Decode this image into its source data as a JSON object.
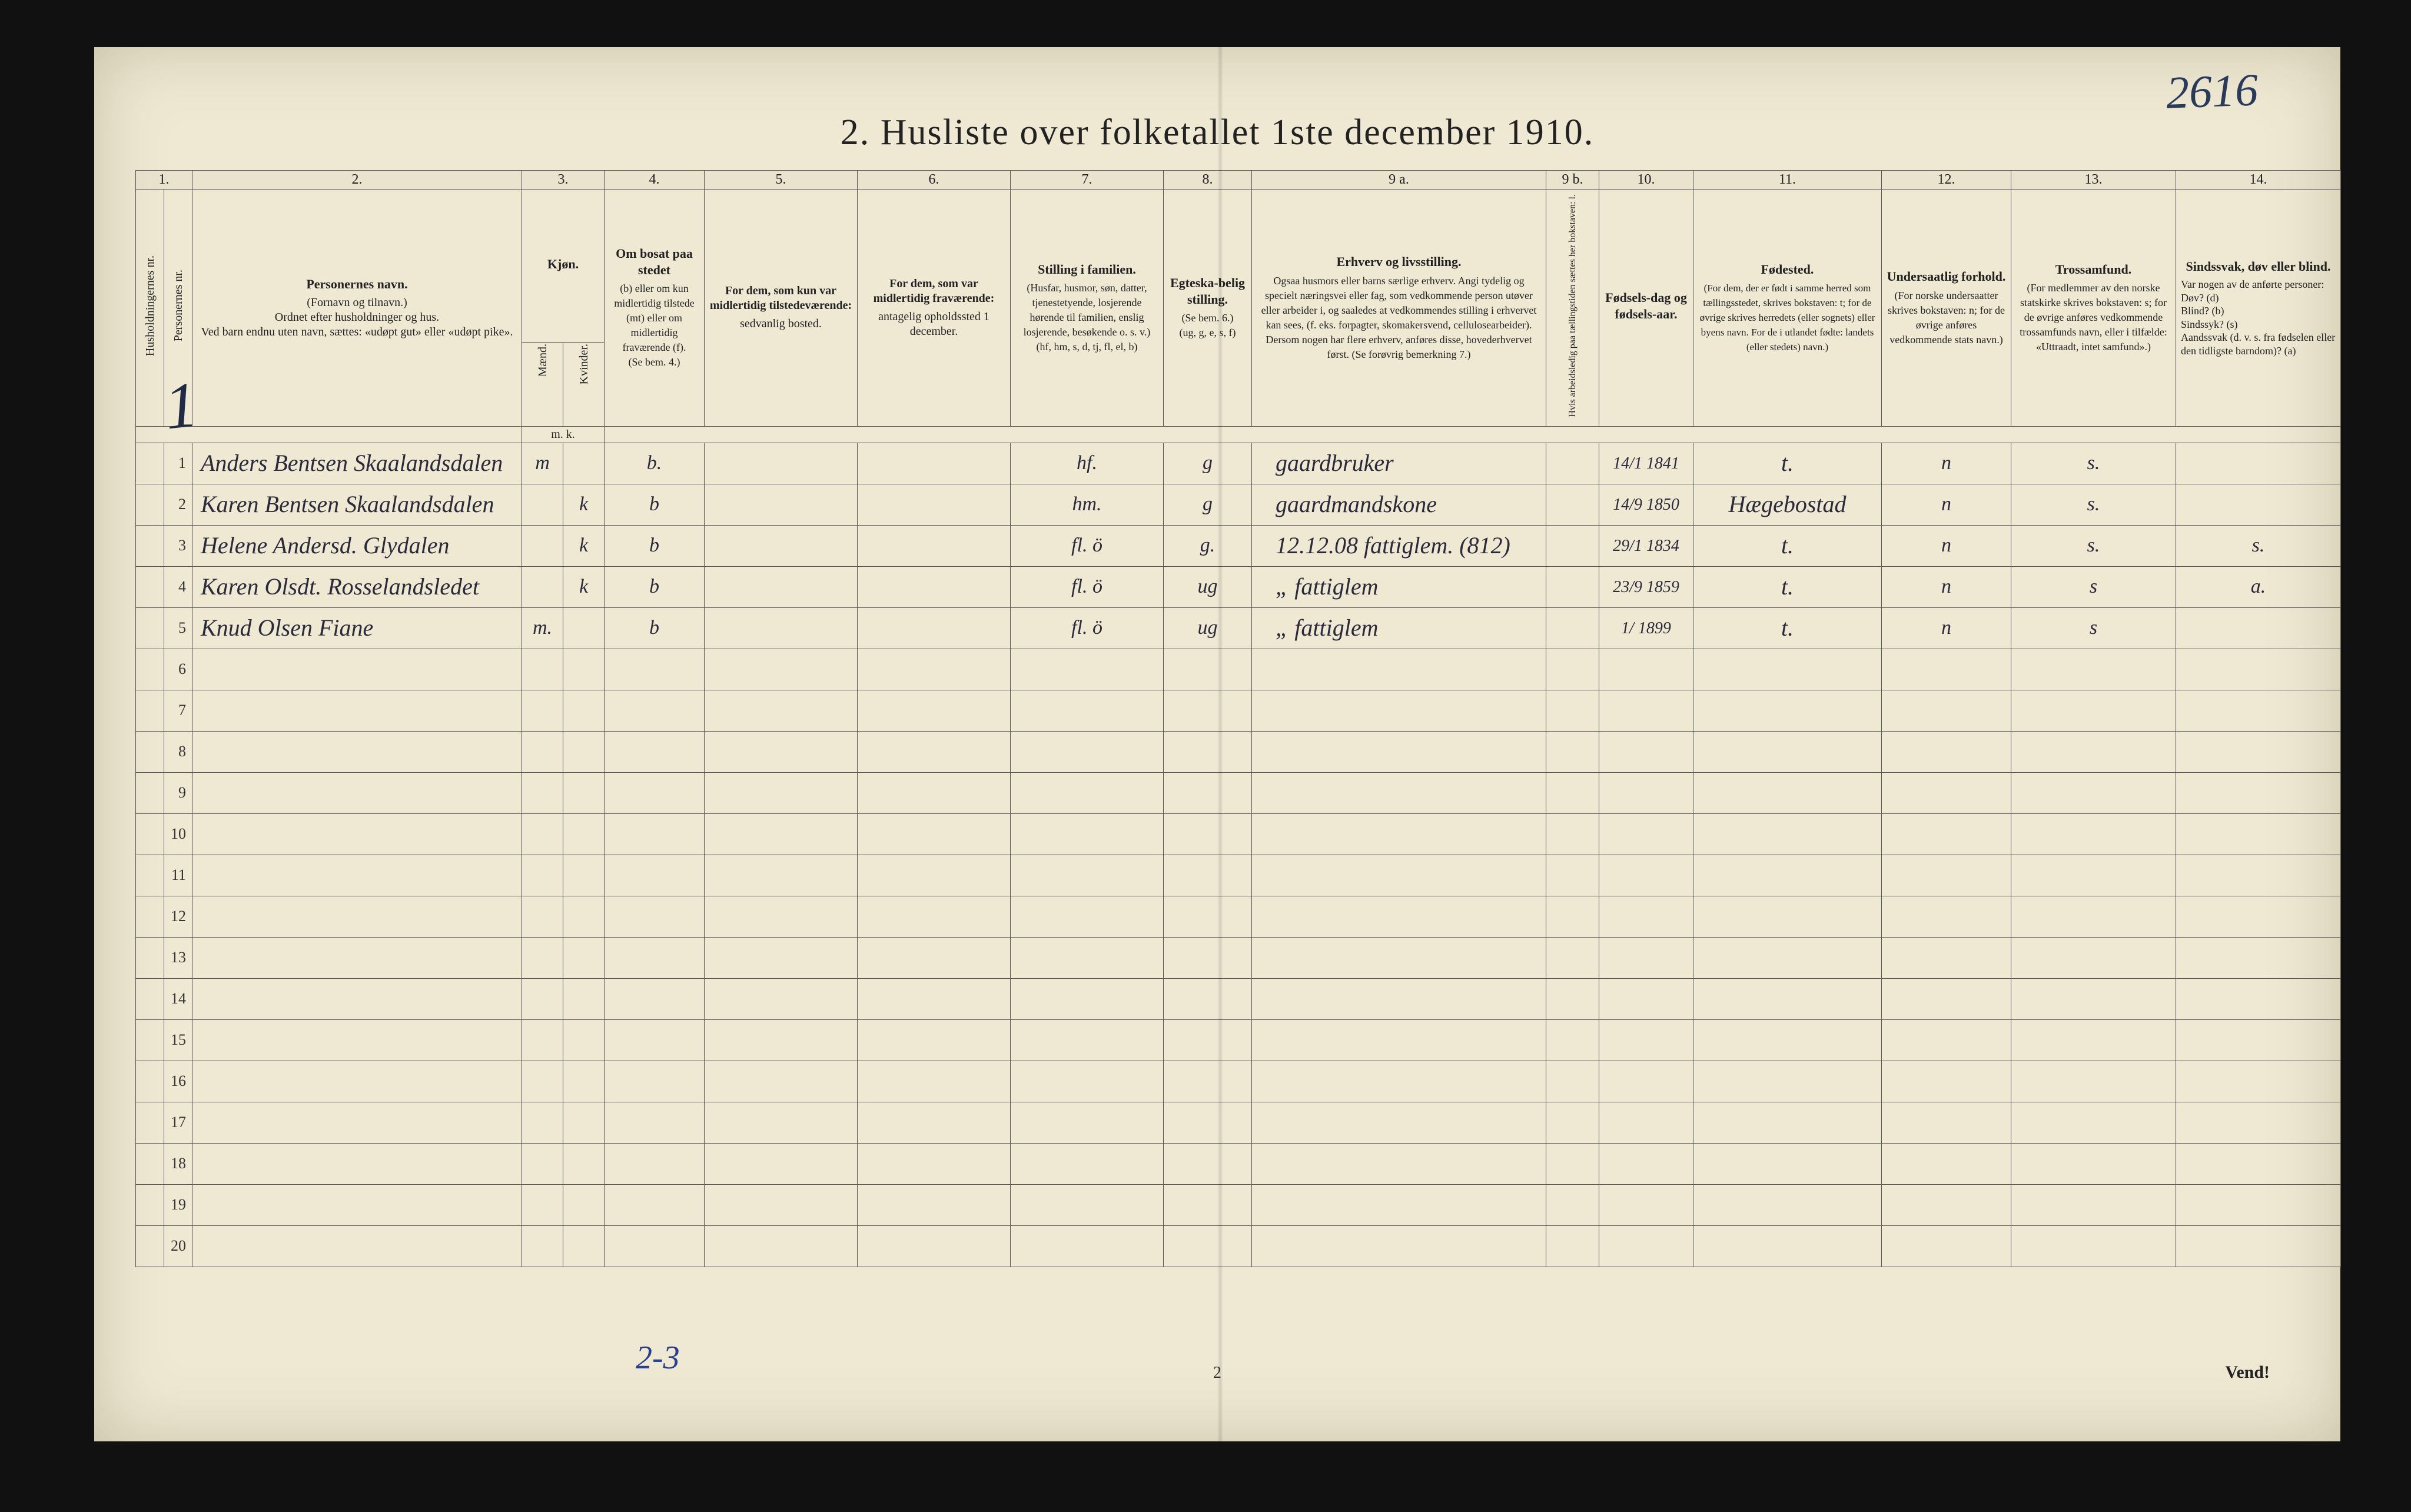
{
  "annotation_top_right": "2616",
  "title": "2.  Husliste over folketallet 1ste december 1910.",
  "big_margin_number": "1",
  "footer_handnote": "2-3",
  "page_number": "2",
  "vend": "Vend!",
  "column_numbers": [
    "1.",
    "",
    "2.",
    "3.",
    "4.",
    "5.",
    "6.",
    "7.",
    "8.",
    "9 a.",
    "9 b.",
    "10.",
    "11.",
    "12.",
    "13.",
    "14."
  ],
  "headers": {
    "c1": "Husholdningernes nr.",
    "c1b": "Personernes nr.",
    "c2_title": "Personernes navn.",
    "c2_body": "(Fornavn og tilnavn.)\nOrdnet efter husholdninger og hus.\nVed barn endnu uten navn, sættes: «udøpt gut» eller «udøpt pike».",
    "c3_title": "Kjøn.",
    "c3_m": "Mænd.",
    "c3_k": "Kvinder.",
    "c3_mk": "m.  k.",
    "c4_title": "Om bosat paa stedet",
    "c4_body": "(b) eller om kun midlertidig tilstede (mt) eller om midlertidig fraværende (f).\n(Se bem. 4.)",
    "c5_title": "For dem, som kun var midlertidig tilstedeværende:",
    "c5_body": "sedvanlig bosted.",
    "c6_title": "For dem, som var midlertidig fraværende:",
    "c6_body": "antagelig opholdssted 1 december.",
    "c7_title": "Stilling i familien.",
    "c7_body": "(Husfar, husmor, søn, datter, tjenestetyende, losjerende hørende til familien, enslig losjerende, besøkende o. s. v.)\n(hf, hm, s, d, tj, fl, el, b)",
    "c8_title": "Egteska-belig stilling.",
    "c8_body": "(Se bem. 6.)\n(ug, g, e, s, f)",
    "c9a_title": "Erhverv og livsstilling.",
    "c9a_body": "Ogsaa husmors eller barns særlige erhverv. Angi tydelig og specielt næringsvei eller fag, som vedkommende person utøver eller arbeider i, og saaledes at vedkommendes stilling i erhvervet kan sees, (f. eks. forpagter, skomakersvend, cellulosearbeider). Dersom nogen har flere erhverv, anføres disse, hovederhvervet først.\n(Se forøvrig bemerkning 7.)",
    "c9b": "Hvis arbeidsledig paa tællingstiden sættes her bokstaven: l.",
    "c10_title": "Fødsels-dag og fødsels-aar.",
    "c11_title": "Fødested.",
    "c11_body": "(For dem, der er født i samme herred som tællingsstedet, skrives bokstaven: t; for de øvrige skrives herredets (eller sognets) eller byens navn. For de i utlandet fødte: landets (eller stedets) navn.)",
    "c12_title": "Undersaatlig forhold.",
    "c12_body": "(For norske undersaatter skrives bokstaven: n; for de øvrige anføres vedkommende stats navn.)",
    "c13_title": "Trossamfund.",
    "c13_body": "(For medlemmer av den norske statskirke skrives bokstaven: s; for de øvrige anføres vedkommende trossamfunds navn, eller i tilfælde: «Uttraadt, intet samfund».)",
    "c14_title": "Sindssvak, døv eller blind.",
    "c14_body": "Var nogen av de anførte personer:\nDøv?        (d)\nBlind?      (b)\nSindssyk?  (s)\nAandssvak (d. v. s. fra fødselen eller den tidligste barndom)?  (a)"
  },
  "rows": [
    {
      "n": "1",
      "name": "Anders Bentsen Skaalandsdalen",
      "sex_m": "m",
      "sex_k": "",
      "bosat": "b.",
      "c7": "hf.",
      "c8": "g",
      "c9a": "gaardbruker",
      "c10": "14/1 1841",
      "c11": "t.",
      "c12": "n",
      "c13": "s.",
      "c14": ""
    },
    {
      "n": "2",
      "name": "Karen Bentsen Skaalandsdalen",
      "sex_m": "",
      "sex_k": "k",
      "bosat": "b",
      "c7": "hm.",
      "c8": "g",
      "c9a": "gaardmandskone",
      "c10": "14/9 1850",
      "c11": "Hægebostad",
      "c12": "n",
      "c13": "s.",
      "c14": ""
    },
    {
      "n": "3",
      "name": "Helene Andersd. Glydalen",
      "sex_m": "",
      "sex_k": "k",
      "bosat": "b",
      "c7": "fl.  ö",
      "c8": "g.",
      "c9a": "12.12.08 fattiglem. (812)",
      "c10": "29/1 1834",
      "c11": "t.",
      "c12": "n",
      "c13": "s.",
      "c14": "s."
    },
    {
      "n": "4",
      "name": "Karen Olsdt. Rosselandsledet",
      "sex_m": "",
      "sex_k": "k",
      "bosat": "b",
      "c7": "fl.  ö",
      "c8": "ug",
      "c9a": "„  fattiglem",
      "c10": "23/9 1859",
      "c11": "t.",
      "c12": "n",
      "c13": "s",
      "c14": "a."
    },
    {
      "n": "5",
      "name": "Knud Olsen Fiane",
      "sex_m": "m.",
      "sex_k": "",
      "bosat": "b",
      "c7": "fl.  ö",
      "c8": "ug",
      "c9a": "„  fattiglem",
      "c10": "1/ 1899",
      "c11": "t.",
      "c12": "n",
      "c13": "s",
      "c14": ""
    },
    {
      "n": "6"
    },
    {
      "n": "7"
    },
    {
      "n": "8"
    },
    {
      "n": "9"
    },
    {
      "n": "10"
    },
    {
      "n": "11"
    },
    {
      "n": "12"
    },
    {
      "n": "13"
    },
    {
      "n": "14"
    },
    {
      "n": "15"
    },
    {
      "n": "16"
    },
    {
      "n": "17"
    },
    {
      "n": "18"
    },
    {
      "n": "19"
    },
    {
      "n": "20"
    }
  ],
  "colors": {
    "paper": "#efe9d4",
    "ink": "#222222",
    "hand": "#2a2a3a",
    "pencil_blue": "#26418f",
    "rule": "#555555"
  }
}
